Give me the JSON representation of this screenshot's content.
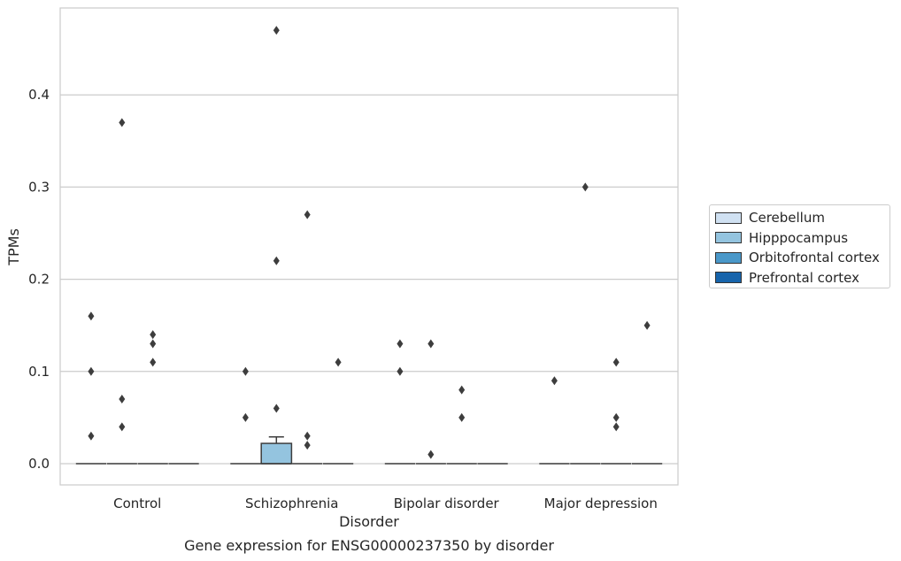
{
  "chart_data": {
    "type": "box",
    "title": "",
    "caption": "Gene expression for ENSG00000237350 by disorder",
    "xlabel": "Disorder",
    "ylabel": "TPMs",
    "categories": [
      "Control",
      "Schizophrenia",
      "Bipolar disorder",
      "Major depression"
    ],
    "y_ticks": [
      "0.0",
      "0.1",
      "0.2",
      "0.3",
      "0.4"
    ],
    "ylim": [
      -0.023,
      0.493
    ],
    "grid": "horizontal",
    "legend_position": "right",
    "series": [
      {
        "name": "Cerebellum",
        "color": "#d0e1f2",
        "boxes": [
          {
            "q1": 0,
            "median": 0,
            "q3": 0,
            "whisker_low": 0,
            "whisker_high": 0,
            "outliers": [
              0.16,
              0.1,
              0.03
            ]
          },
          {
            "q1": 0,
            "median": 0,
            "q3": 0,
            "whisker_low": 0,
            "whisker_high": 0,
            "outliers": [
              0.1,
              0.05
            ]
          },
          {
            "q1": 0,
            "median": 0,
            "q3": 0,
            "whisker_low": 0,
            "whisker_high": 0,
            "outliers": [
              0.13,
              0.1
            ]
          },
          {
            "q1": 0,
            "median": 0,
            "q3": 0,
            "whisker_low": 0,
            "whisker_high": 0,
            "outliers": [
              0.09
            ]
          }
        ]
      },
      {
        "name": "Hipppocampus",
        "color": "#94c4df",
        "boxes": [
          {
            "q1": 0,
            "median": 0,
            "q3": 0,
            "whisker_low": 0,
            "whisker_high": 0,
            "outliers": [
              0.37,
              0.07,
              0.04
            ]
          },
          {
            "q1": 0,
            "median": 0,
            "q3": 0.022,
            "whisker_low": 0,
            "whisker_high": 0.029,
            "outliers": [
              0.47,
              0.22,
              0.06
            ]
          },
          {
            "q1": 0,
            "median": 0,
            "q3": 0,
            "whisker_low": 0,
            "whisker_high": 0,
            "outliers": [
              0.13,
              0.01
            ]
          },
          {
            "q1": 0,
            "median": 0,
            "q3": 0,
            "whisker_low": 0,
            "whisker_high": 0,
            "outliers": [
              0.3
            ]
          }
        ]
      },
      {
        "name": "Orbitofrontal cortex",
        "color": "#4a98c9",
        "boxes": [
          {
            "q1": 0,
            "median": 0,
            "q3": 0,
            "whisker_low": 0,
            "whisker_high": 0,
            "outliers": [
              0.14,
              0.13,
              0.11
            ]
          },
          {
            "q1": 0,
            "median": 0,
            "q3": 0,
            "whisker_low": 0,
            "whisker_high": 0,
            "outliers": [
              0.27,
              0.03,
              0.02
            ]
          },
          {
            "q1": 0,
            "median": 0,
            "q3": 0,
            "whisker_low": 0,
            "whisker_high": 0,
            "outliers": [
              0.08,
              0.05
            ]
          },
          {
            "q1": 0,
            "median": 0,
            "q3": 0,
            "whisker_low": 0,
            "whisker_high": 0,
            "outliers": [
              0.11,
              0.05,
              0.04
            ]
          }
        ]
      },
      {
        "name": "Prefrontal cortex",
        "color": "#1764ab",
        "boxes": [
          {
            "q1": 0,
            "median": 0,
            "q3": 0,
            "whisker_low": 0,
            "whisker_high": 0,
            "outliers": []
          },
          {
            "q1": 0,
            "median": 0,
            "q3": 0,
            "whisker_low": 0,
            "whisker_high": 0,
            "outliers": [
              0.11
            ]
          },
          {
            "q1": 0,
            "median": 0,
            "q3": 0,
            "whisker_low": 0,
            "whisker_high": 0,
            "outliers": []
          },
          {
            "q1": 0,
            "median": 0,
            "q3": 0,
            "whisker_low": 0,
            "whisker_high": 0,
            "outliers": [
              0.15
            ]
          }
        ]
      }
    ]
  }
}
